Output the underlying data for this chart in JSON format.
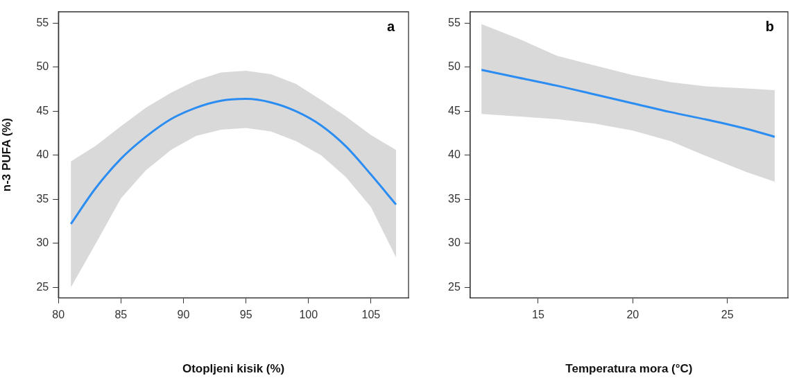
{
  "chart_data": [
    {
      "type": "line",
      "xlabel": "Otopljeni kisik (%)",
      "ylabel": "n-3 PUFA (%)",
      "annotations": [
        "a"
      ],
      "x": [
        81,
        83,
        85,
        87,
        89,
        91,
        93,
        95,
        97,
        99,
        101,
        103,
        105,
        107
      ],
      "series": [
        {
          "color": "#2b8cf2",
          "values": [
            32.2,
            36.3,
            39.6,
            42.1,
            44.1,
            45.4,
            46.2,
            46.4,
            46.0,
            45.0,
            43.4,
            41.0,
            37.8,
            34.4
          ],
          "upper": [
            39.3,
            41.1,
            43.3,
            45.4,
            47.1,
            48.5,
            49.4,
            49.6,
            49.2,
            48.1,
            46.3,
            44.4,
            42.3,
            40.6
          ],
          "lower": [
            25.0,
            30.0,
            35.1,
            38.3,
            40.6,
            42.2,
            42.9,
            43.1,
            42.7,
            41.6,
            40.0,
            37.5,
            34.1,
            28.4
          ]
        }
      ],
      "xlim": [
        80,
        108
      ],
      "xticks": [
        80,
        85,
        90,
        95,
        100,
        105
      ],
      "ylim": [
        23.8,
        56.3
      ],
      "yticks": [
        25,
        30,
        35,
        40,
        45,
        50,
        55
      ],
      "grid": false,
      "legend": false,
      "marker": "none"
    },
    {
      "type": "line",
      "xlabel": "Temperatura mora (°C)",
      "annotations": [
        "b"
      ],
      "x": [
        12,
        14,
        16,
        18,
        20,
        22,
        24,
        26,
        27.5
      ],
      "series": [
        {
          "color": "#2b8cf2",
          "values": [
            49.7,
            48.8,
            47.9,
            46.9,
            45.9,
            44.9,
            44.0,
            43.0,
            42.1
          ],
          "upper": [
            54.9,
            53.2,
            51.3,
            50.2,
            49.1,
            48.3,
            47.8,
            47.6,
            47.4
          ],
          "lower": [
            44.7,
            44.4,
            44.1,
            43.6,
            42.8,
            41.6,
            39.8,
            38.1,
            37.0
          ]
        }
      ],
      "xlim": [
        11.4,
        28.2
      ],
      "xticks": [
        15,
        20,
        25
      ],
      "ylim": [
        23.8,
        56.3
      ],
      "yticks": [
        25,
        30,
        35,
        40,
        45,
        50,
        55
      ],
      "grid": false,
      "legend": false,
      "marker": "none"
    }
  ]
}
